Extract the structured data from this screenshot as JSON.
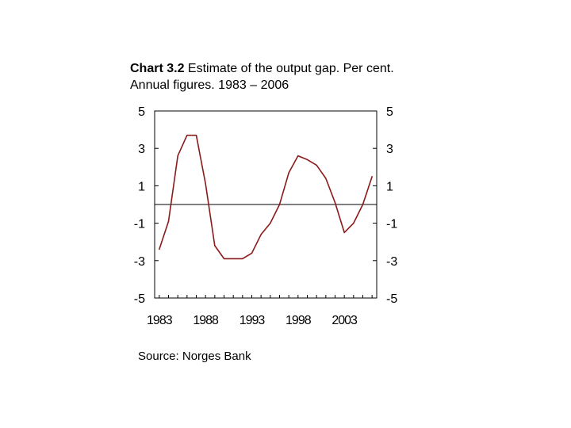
{
  "title": {
    "prefix": "Chart 3.2",
    "text": "Estimate of the output gap. Per cent. Annual figures. 1983 – 2006"
  },
  "source": "Source: Norges Bank",
  "colors": {
    "series": "#8b1a1a",
    "axis": "#000000",
    "zero_line": "#000000"
  },
  "chart_data": {
    "type": "line",
    "title": "Estimate of the output gap. Per cent. Annual figures. 1983 – 2006",
    "xlabel": "",
    "ylabel": "",
    "xlim": [
      1982.5,
      2006.5
    ],
    "ylim": [
      -5,
      5
    ],
    "x_ticks": [
      1983,
      1988,
      1993,
      1998,
      2003
    ],
    "x_tick_labels": [
      "1983",
      "1988",
      "1993",
      "1998",
      "2003"
    ],
    "y_ticks": [
      5,
      3,
      1,
      -1,
      -3,
      -5
    ],
    "y_tick_labels": [
      "5",
      "3",
      "1",
      "-1",
      "-3",
      "-5"
    ],
    "reference_line": 0,
    "grid": false,
    "series": [
      {
        "name": "Output gap",
        "x": [
          1983,
          1984,
          1985,
          1986,
          1987,
          1988,
          1989,
          1990,
          1991,
          1992,
          1993,
          1994,
          1995,
          1996,
          1997,
          1998,
          1999,
          2000,
          2001,
          2002,
          2003,
          2004,
          2005,
          2006
        ],
        "values": [
          -2.4,
          -0.9,
          2.6,
          3.7,
          3.7,
          1.1,
          -2.2,
          -2.9,
          -2.9,
          -2.9,
          -2.6,
          -1.6,
          -1.0,
          0.0,
          1.7,
          2.6,
          2.4,
          2.1,
          1.4,
          0.1,
          -1.5,
          -1.0,
          0.0,
          1.5
        ]
      }
    ]
  }
}
